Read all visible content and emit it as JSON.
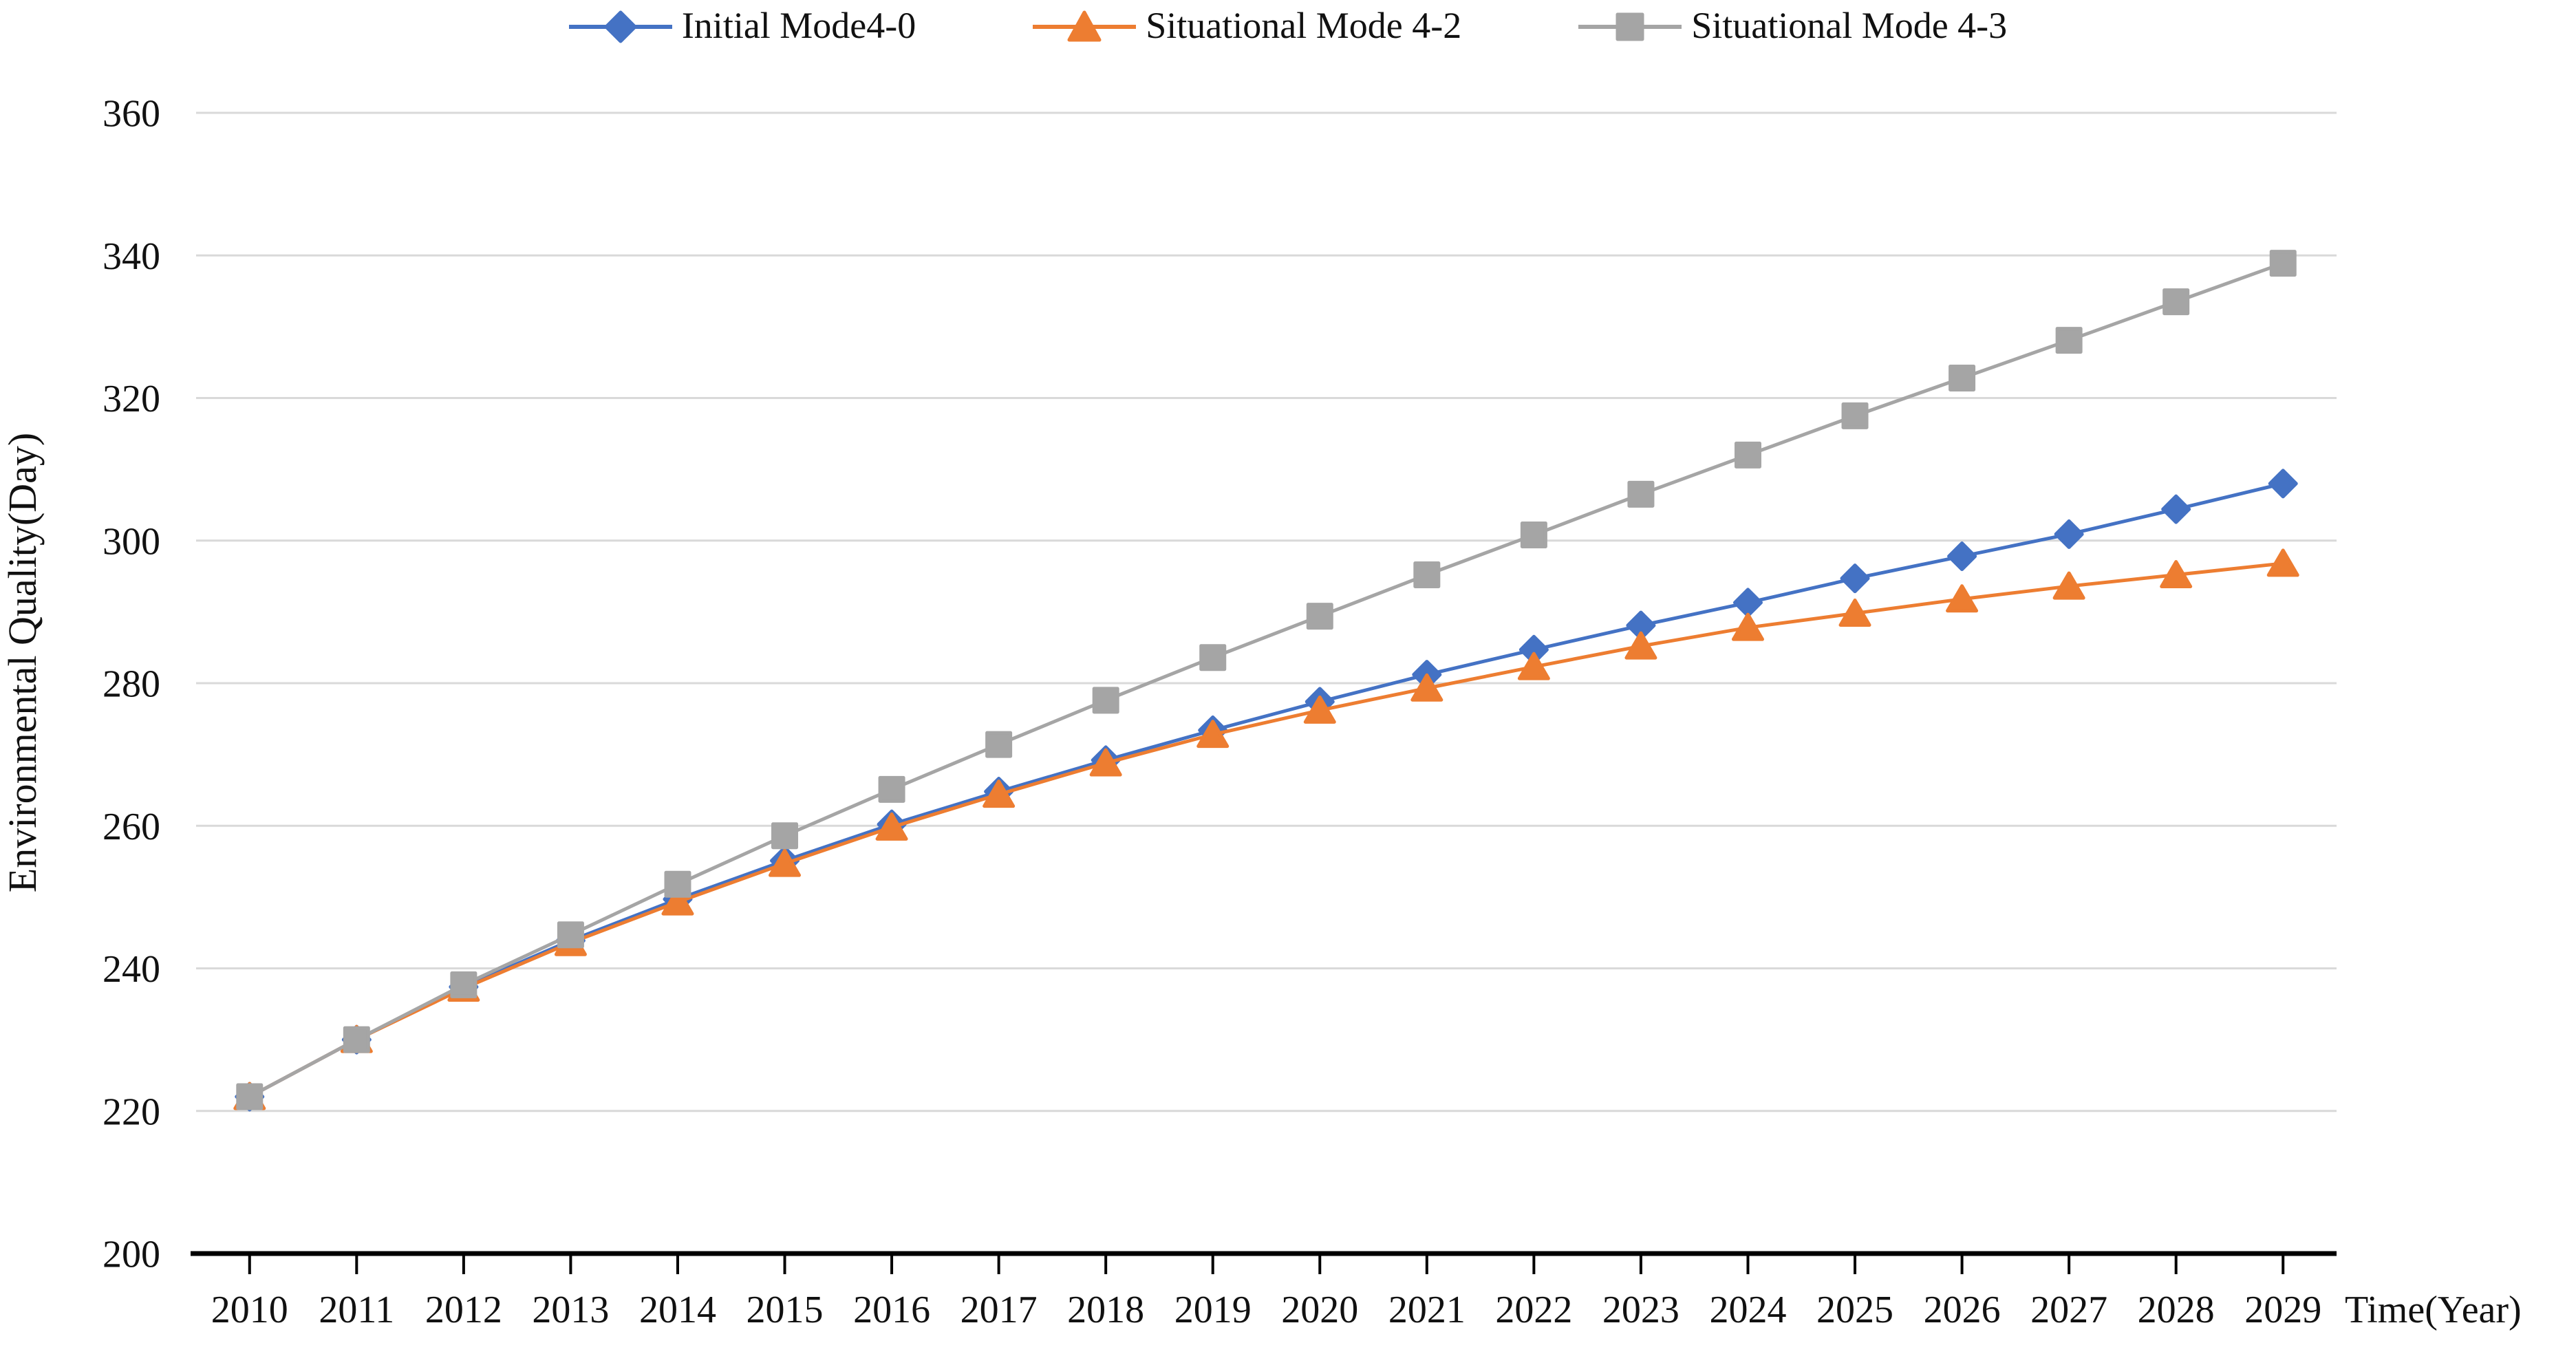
{
  "chart_data": {
    "type": "line",
    "title": "",
    "xlabel": "Time(Year)",
    "ylabel": "Environmental Quality(Day)",
    "ylim": [
      200,
      360
    ],
    "yticks": [
      200,
      220,
      240,
      260,
      280,
      300,
      320,
      340,
      360
    ],
    "grid": true,
    "legend_position": "top",
    "categories": [
      "2010",
      "2011",
      "2012",
      "2013",
      "2014",
      "2015",
      "2016",
      "2017",
      "2018",
      "2019",
      "2020",
      "2021",
      "2022",
      "2023",
      "2024",
      "2025",
      "2026",
      "2027",
      "2028",
      "2029"
    ],
    "series": [
      {
        "name": "Initial Mode4-0",
        "color": "#4472C4",
        "marker": "diamond",
        "values": [
          222,
          230,
          237.4,
          243.9,
          249.7,
          255.1,
          260.2,
          264.8,
          269.2,
          273.4,
          277.4,
          281.2,
          284.7,
          288.1,
          291.3,
          294.7,
          297.8,
          300.9,
          304.4,
          308.0
        ]
      },
      {
        "name": "Situational Mode 4-2",
        "color": "#ED7D31",
        "marker": "triangle",
        "values": [
          222,
          230,
          237.2,
          243.6,
          249.3,
          254.7,
          259.8,
          264.4,
          268.8,
          272.8,
          276.2,
          279.3,
          282.3,
          285.2,
          287.8,
          289.8,
          291.8,
          293.6,
          295.2,
          296.8
        ]
      },
      {
        "name": "Situational Mode 4-3",
        "color": "#A5A5A5",
        "marker": "square",
        "values": [
          222,
          230,
          237.7,
          244.7,
          251.8,
          258.6,
          265.1,
          271.4,
          277.6,
          283.6,
          289.4,
          295.2,
          300.8,
          306.5,
          312.0,
          317.5,
          322.8,
          328.1,
          333.5,
          338.9
        ]
      }
    ],
    "colors": {
      "gridline": "#D9D9D9",
      "axis": "#000000",
      "text": "#111111",
      "background": "#ffffff"
    }
  }
}
